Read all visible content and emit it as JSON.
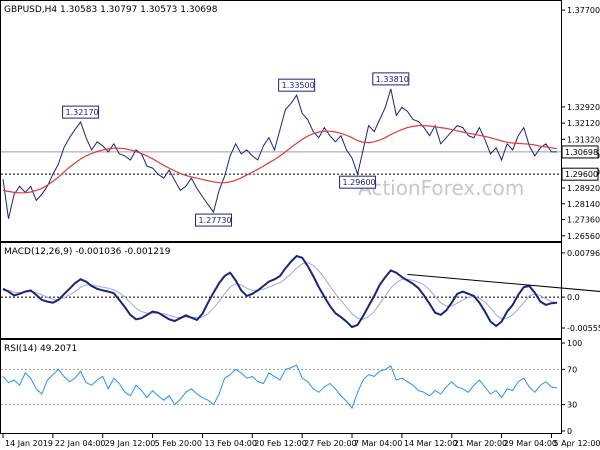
{
  "chart_data": {
    "type": "line",
    "price_panel": {
      "header": "GBPUSD,H4  1.30583 1.30797 1.30573 1.30698",
      "watermark": "ActionForex.com",
      "ylim": [
        1.2645,
        1.38
      ],
      "y_ticks": [
        "1.37700",
        "1.32920",
        "1.32120",
        "1.31320",
        "1.30520",
        "1.29720",
        "1.28920",
        "1.28140",
        "1.27360",
        "1.26560"
      ],
      "y_tick_values": [
        1.377,
        1.3292,
        1.3212,
        1.3132,
        1.3052,
        1.2972,
        1.2892,
        1.2814,
        1.2736,
        1.2656
      ],
      "current_price": "1.30698",
      "current_price_value": 1.30698,
      "support_line": "1.29600",
      "support_value": 1.296,
      "annotations": [
        {
          "label": "1.32170",
          "value": 1.3217,
          "x": 14
        },
        {
          "label": "1.27730",
          "value": 1.2773,
          "x": 38
        },
        {
          "label": "1.33500",
          "value": 1.335,
          "x": 53
        },
        {
          "label": "1.29600",
          "value": 1.296,
          "x": 64
        },
        {
          "label": "1.33810",
          "value": 1.3381,
          "x": 70
        }
      ],
      "series": [
        {
          "name": "price",
          "color": "#1a237e",
          "values": [
            1.2935,
            1.274,
            1.286,
            1.29,
            1.287,
            1.29,
            1.283,
            1.286,
            1.29,
            1.296,
            1.301,
            1.309,
            1.314,
            1.318,
            1.3217,
            1.314,
            1.308,
            1.312,
            1.31,
            1.307,
            1.311,
            1.306,
            1.305,
            1.303,
            1.308,
            1.306,
            1.3,
            1.299,
            1.296,
            1.294,
            1.298,
            1.293,
            1.288,
            1.29,
            1.294,
            1.289,
            1.285,
            1.281,
            1.2773,
            1.288,
            1.295,
            1.305,
            1.311,
            1.306,
            1.308,
            1.305,
            1.303,
            1.31,
            1.314,
            1.308,
            1.318,
            1.328,
            1.331,
            1.335,
            1.326,
            1.323,
            1.317,
            1.314,
            1.319,
            1.315,
            1.312,
            1.315,
            1.308,
            1.304,
            1.296,
            1.308,
            1.32,
            1.317,
            1.323,
            1.329,
            1.3381,
            1.325,
            1.329,
            1.327,
            1.323,
            1.322,
            1.319,
            1.315,
            1.32,
            1.311,
            1.314,
            1.317,
            1.32,
            1.319,
            1.315,
            1.314,
            1.319,
            1.313,
            1.306,
            1.309,
            1.303,
            1.311,
            1.308,
            1.315,
            1.319,
            1.31,
            1.305,
            1.309,
            1.311,
            1.307,
            1.307
          ]
        },
        {
          "name": "ma",
          "color": "#e53935",
          "values": [
            1.288,
            1.2875,
            1.287,
            1.2868,
            1.2868,
            1.2872,
            1.288,
            1.289,
            1.2905,
            1.2925,
            1.2945,
            1.297,
            1.2995,
            1.3015,
            1.3035,
            1.305,
            1.3062,
            1.3072,
            1.308,
            1.3085,
            1.3088,
            1.3088,
            1.3086,
            1.308,
            1.3072,
            1.3062,
            1.305,
            1.3036,
            1.302,
            1.3004,
            1.299,
            1.2976,
            1.2964,
            1.2954,
            1.2946,
            1.294,
            1.2934,
            1.2928,
            1.2922,
            1.2918,
            1.2918,
            1.2922,
            1.293,
            1.2942,
            1.2956,
            1.297,
            1.2984,
            1.3,
            1.3016,
            1.3032,
            1.305,
            1.307,
            1.3092,
            1.3112,
            1.3132,
            1.3148,
            1.316,
            1.3168,
            1.3172,
            1.3172,
            1.3168,
            1.3162,
            1.3152,
            1.314,
            1.3126,
            1.3118,
            1.3116,
            1.312,
            1.3128,
            1.314,
            1.3156,
            1.3168,
            1.318,
            1.319,
            1.3196,
            1.32,
            1.32,
            1.3198,
            1.3194,
            1.319,
            1.3186,
            1.318,
            1.3174,
            1.3168,
            1.3162,
            1.3158,
            1.3152,
            1.3146,
            1.314,
            1.3132,
            1.3124,
            1.3118,
            1.3114,
            1.3112,
            1.311,
            1.3108,
            1.3104,
            1.3098,
            1.3094,
            1.309,
            1.3086
          ]
        }
      ]
    },
    "macd_panel": {
      "label": "MACD(12,26,9) -0.001036 -0.001219",
      "ylim": [
        -0.007,
        0.0092
      ],
      "y_ticks": [
        "0.007963",
        "0.0",
        "-0.005559"
      ],
      "y_tick_values": [
        0.007963,
        0.0,
        -0.005559
      ],
      "trendline": {
        "x": [
          73,
          108
        ],
        "y": [
          0.0041,
          0.001
        ]
      },
      "series": [
        {
          "name": "macd",
          "color": "#1a237e",
          "values": [
            0.0015,
            0.001,
            0.0003,
            0.0006,
            0.001,
            0.0012,
            0.0004,
            -0.0005,
            -0.0008,
            -0.001,
            -0.0005,
            0.0005,
            0.0015,
            0.0025,
            0.0032,
            0.0028,
            0.002,
            0.0015,
            0.0012,
            0.001,
            0.0007,
            -0.0005,
            -0.0018,
            -0.0032,
            -0.004,
            -0.0038,
            -0.0032,
            -0.0026,
            -0.0028,
            -0.0034,
            -0.004,
            -0.0043,
            -0.0038,
            -0.0033,
            -0.0037,
            -0.0041,
            -0.003,
            -0.001,
            0.0008,
            0.0025,
            0.0038,
            0.0044,
            0.003,
            0.0012,
            0.0002,
            0.0006,
            0.0012,
            0.002,
            0.0028,
            0.0032,
            0.0038,
            0.0052,
            0.0064,
            0.0074,
            0.0071,
            0.0056,
            0.0038,
            0.0018,
            0.0001,
            -0.0016,
            -0.0029,
            -0.0036,
            -0.0044,
            -0.0054,
            -0.005,
            -0.0034,
            -0.0016,
            0.0002,
            0.0022,
            0.0036,
            0.0048,
            0.0044,
            0.0036,
            0.003,
            0.0024,
            0.0016,
            0.0003,
            -0.0012,
            -0.0028,
            -0.0032,
            -0.0024,
            -0.001,
            0.0006,
            0.001,
            0.0006,
            0.0002,
            -0.001,
            -0.0026,
            -0.0044,
            -0.0052,
            -0.0044,
            -0.0026,
            -0.0014,
            0.0004,
            0.0018,
            0.002,
            0.0008,
            -0.0008,
            -0.0014,
            -0.0011,
            -0.001
          ]
        },
        {
          "name": "signal",
          "color": "#9fa8da",
          "values": [
            0.0012,
            0.0012,
            0.0009,
            0.0008,
            0.0009,
            0.001,
            0.0008,
            0.0004,
            0.0,
            -0.0004,
            -0.0004,
            -0.0001,
            0.0004,
            0.001,
            0.0018,
            0.0022,
            0.0022,
            0.002,
            0.0018,
            0.0016,
            0.0013,
            0.0008,
            0.0,
            -0.001,
            -0.002,
            -0.0026,
            -0.0029,
            -0.0029,
            -0.0029,
            -0.003,
            -0.0033,
            -0.0036,
            -0.0037,
            -0.0036,
            -0.0036,
            -0.0037,
            -0.0036,
            -0.003,
            -0.002,
            -0.0008,
            0.0006,
            0.0018,
            0.0024,
            0.0022,
            0.0016,
            0.0012,
            0.0012,
            0.0014,
            0.0018,
            0.0022,
            0.0026,
            0.0033,
            0.0042,
            0.0052,
            0.006,
            0.0062,
            0.0057,
            0.0047,
            0.0035,
            0.002,
            0.0006,
            -0.0006,
            -0.0018,
            -0.003,
            -0.0038,
            -0.004,
            -0.0035,
            -0.0026,
            -0.0012,
            0.0002,
            0.0016,
            0.0026,
            0.0032,
            0.0032,
            0.003,
            0.0027,
            0.0022,
            0.0013,
            0.0001,
            -0.001,
            -0.0016,
            -0.0016,
            -0.0011,
            -0.0005,
            0.0,
            0.0001,
            -0.0002,
            -0.0009,
            -0.0019,
            -0.0032,
            -0.0039,
            -0.0038,
            -0.0032,
            -0.0022,
            -0.001,
            0.0002,
            0.0006,
            0.0003,
            -0.0003,
            -0.0008,
            -0.001
          ]
        }
      ]
    },
    "rsi_panel": {
      "label": "RSI(14) 49.2071",
      "ylim": [
        0,
        100
      ],
      "y_ticks": [
        "100",
        "70",
        "30",
        "0"
      ],
      "y_tick_values": [
        100,
        70,
        30,
        0
      ],
      "levels": [
        70,
        30
      ],
      "series": [
        {
          "name": "rsi",
          "color": "#2196f3",
          "values": [
            62,
            55,
            58,
            52,
            66,
            60,
            48,
            42,
            58,
            64,
            70,
            62,
            56,
            60,
            68,
            55,
            52,
            58,
            62,
            48,
            60,
            54,
            44,
            40,
            52,
            46,
            38,
            46,
            40,
            35,
            40,
            30,
            36,
            44,
            48,
            42,
            38,
            35,
            30,
            42,
            60,
            64,
            70,
            66,
            60,
            62,
            56,
            54,
            66,
            62,
            58,
            70,
            72,
            75,
            60,
            56,
            48,
            44,
            50,
            54,
            48,
            40,
            34,
            26,
            44,
            58,
            64,
            62,
            68,
            70,
            74,
            58,
            60,
            56,
            52,
            46,
            44,
            40,
            46,
            42,
            50,
            56,
            50,
            48,
            44,
            52,
            58,
            50,
            42,
            46,
            38,
            48,
            46,
            56,
            60,
            50,
            44,
            52,
            56,
            50,
            49
          ]
        }
      ]
    },
    "x_ticks": [
      "14 Jan 2019",
      "22 Jan 04:00",
      "29 Jan 12:00",
      "5 Feb 20:00",
      "13 Feb 04:00",
      "20 Feb 12:00",
      "27 Feb 20:00",
      "7 Mar 04:00",
      "14 Mar 12:00",
      "21 Mar 20:00",
      "29 Mar 04:00",
      "5 Apr 12:00"
    ],
    "x_tick_positions": [
      0,
      9,
      18,
      27,
      36,
      45,
      54,
      63,
      72,
      81,
      90,
      99
    ],
    "x_range": [
      0,
      100
    ]
  }
}
